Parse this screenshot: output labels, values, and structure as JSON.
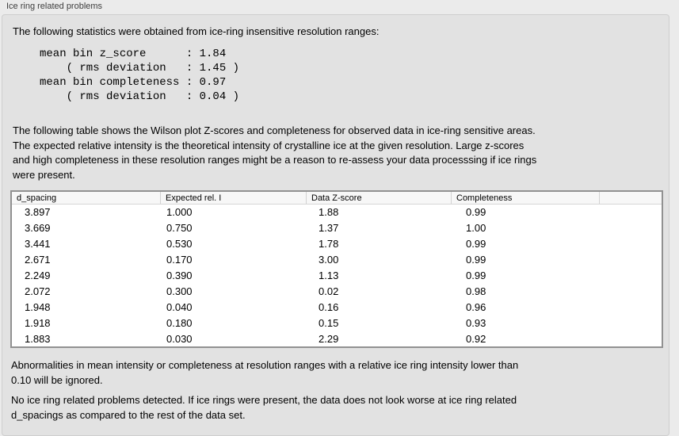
{
  "panel": {
    "title": "Ice ring related problems"
  },
  "intro": {
    "text": "The following statistics were obtained from ice-ring insensitive resolution ranges:"
  },
  "stats_block": "mean bin z_score      : 1.84\n    ( rms deviation   : 1.45 )\nmean bin completeness : 0.97\n    ( rms deviation   : 0.04 )",
  "stats": {
    "mean_bin_z_score": "1.84",
    "z_score_rms_deviation": "1.45",
    "mean_bin_completeness": "0.97",
    "completeness_rms_deviation": "0.04"
  },
  "table_description": "The following table shows the Wilson plot Z-scores and completeness for observed data in ice-ring sensitive areas.\nThe expected relative intensity is the theoretical intensity of crystalline ice at the given resolution. Large z-scores\nand high completeness in these resolution ranges might be a reason to re-assess your data processsing if ice rings\nwere present.",
  "table": {
    "columns": [
      "d_spacing",
      "Expected rel. I",
      "Data Z-score",
      "Completeness"
    ],
    "rows": [
      [
        "3.897",
        "1.000",
        "1.88",
        "0.99"
      ],
      [
        "3.669",
        "0.750",
        "1.37",
        "1.00"
      ],
      [
        "3.441",
        "0.530",
        "1.78",
        "0.99"
      ],
      [
        "2.671",
        "0.170",
        "3.00",
        "0.99"
      ],
      [
        "2.249",
        "0.390",
        "1.13",
        "0.99"
      ],
      [
        "2.072",
        "0.300",
        "0.02",
        "0.98"
      ],
      [
        "1.948",
        "0.040",
        "0.16",
        "0.96"
      ],
      [
        "1.918",
        "0.180",
        "0.15",
        "0.93"
      ],
      [
        "1.883",
        "0.030",
        "2.29",
        "0.92"
      ]
    ]
  },
  "notes": {
    "ignore_note": "Abnormalities in mean intensity or completeness at resolution ranges with a relative ice ring intensity lower than\n0.10 will be ignored.",
    "conclusion": "No ice ring related problems detected. If ice rings were present, the data does not look worse at ice ring related\nd_spacings as compared to the rest of the data set."
  },
  "colors": {
    "window_bg": "#ebebeb",
    "panel_bg": "#e2e2e2",
    "panel_border": "#cecece",
    "table_bg": "#ffffff",
    "table_border": "#919191",
    "table_header_bg": "#f7f7f7",
    "text": "#000000",
    "label_text": "#3e3e3e"
  }
}
